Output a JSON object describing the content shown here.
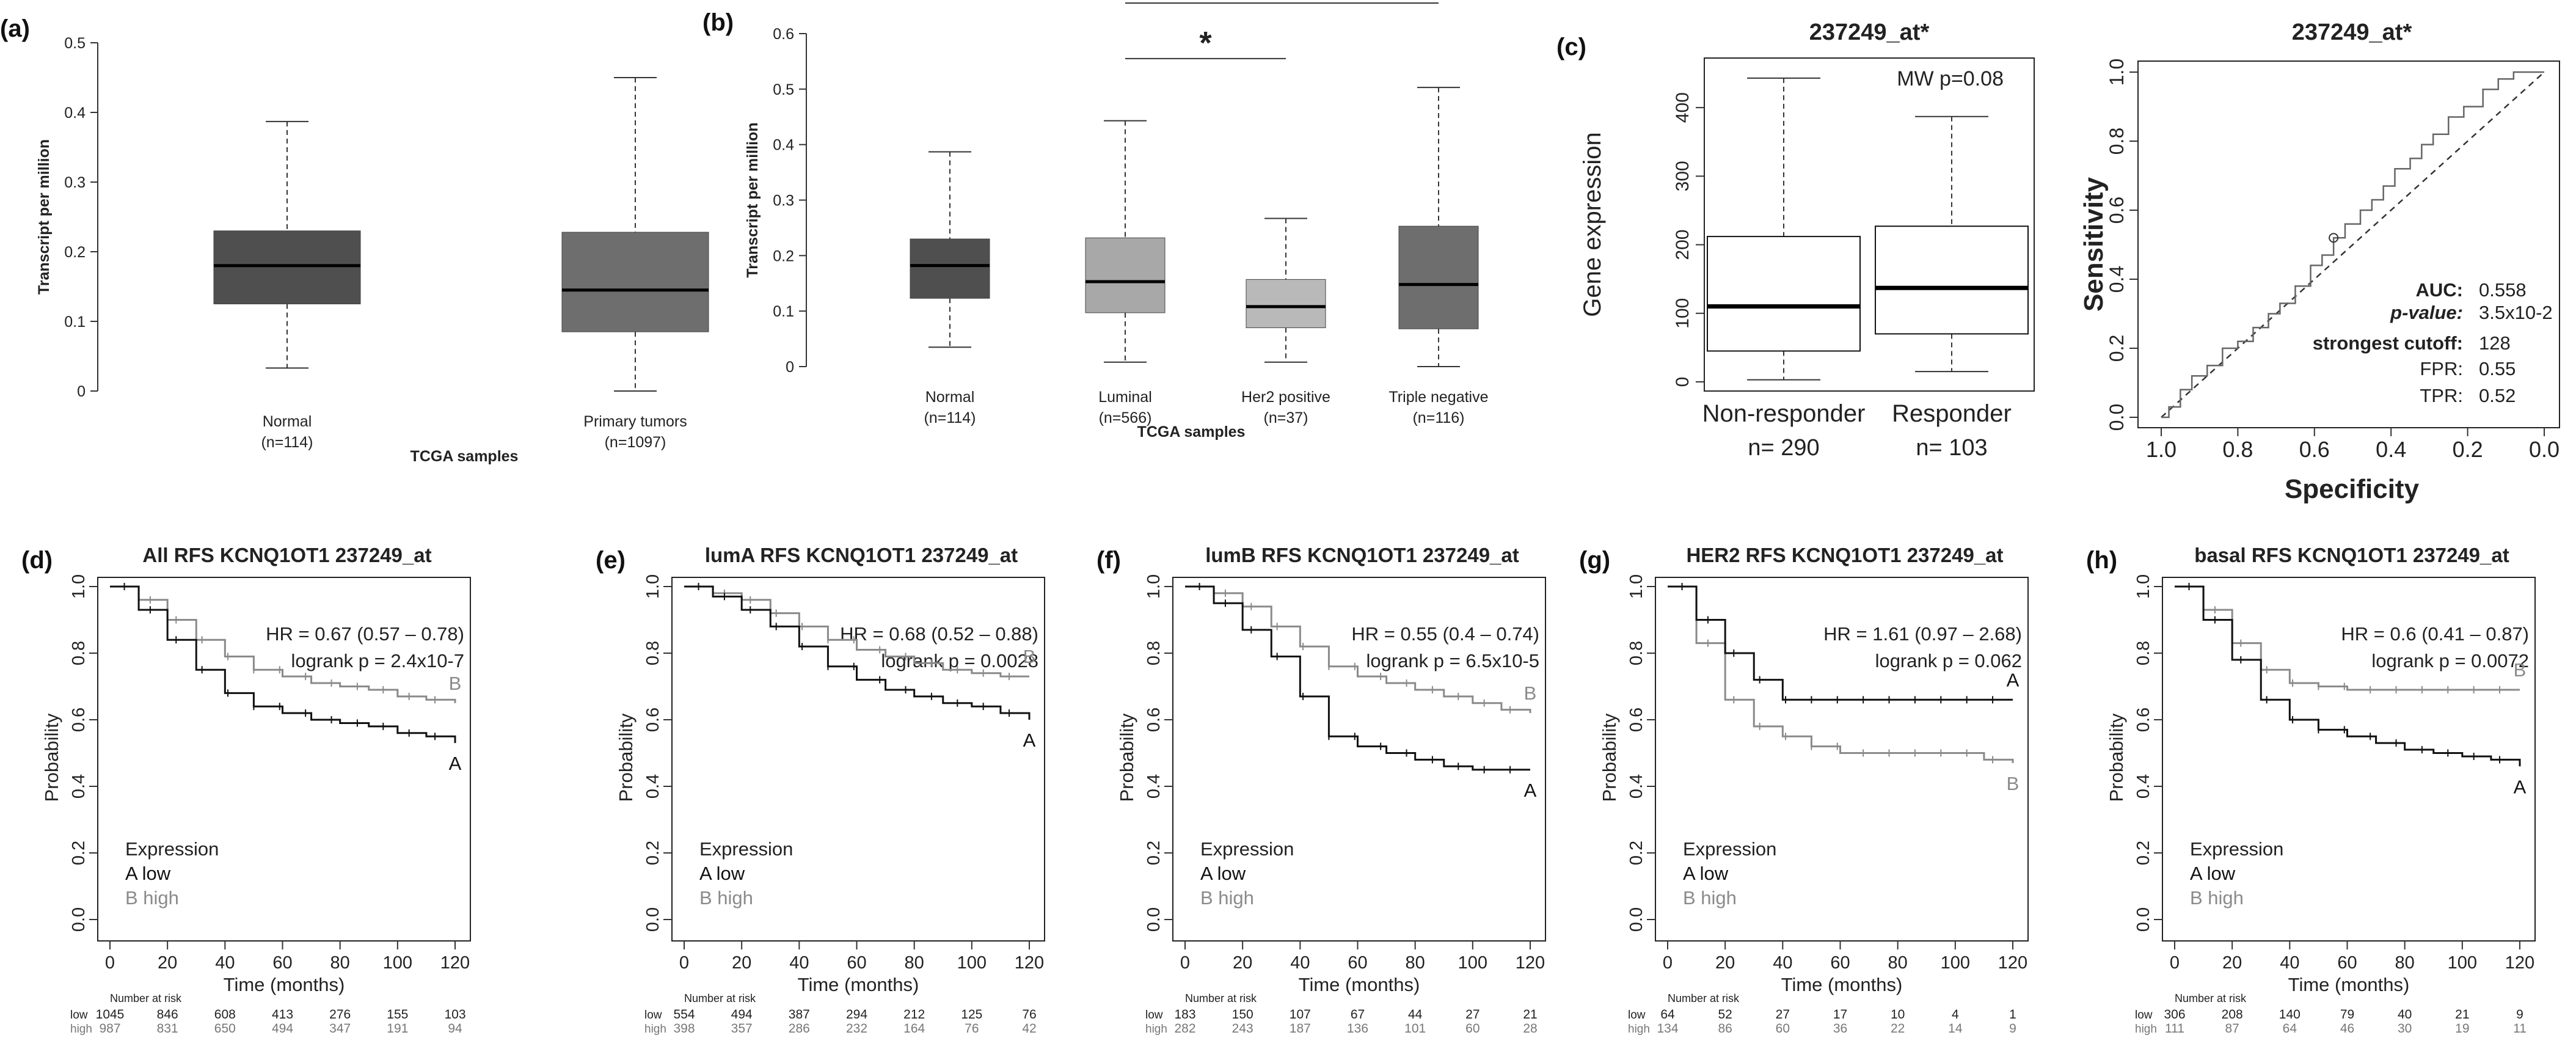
{
  "colors": {
    "dark_box": "#4f4f4f",
    "mid_box": "#6e6e6e",
    "light_box": "#a8a8a8",
    "lighter_box": "#b9b9b9",
    "km_low": "#111111",
    "km_high": "#8a8a8a",
    "axis": "#333333"
  },
  "chart_data": [
    {
      "id": "a",
      "type": "box",
      "panel_label": "(a)",
      "ylabel": "Transcript per million",
      "xlabel": "TCGA samples",
      "ylim": [
        0,
        0.5
      ],
      "yticks": [
        "0",
        "0.1",
        "0.2",
        "0.3",
        "0.4",
        "0.5"
      ],
      "groups": [
        {
          "name": "Normal",
          "n": "(n=114)",
          "min": 0.033,
          "q1": 0.125,
          "median": 0.18,
          "q3": 0.23,
          "max": 0.387,
          "fill": "dark_box"
        },
        {
          "name": "Primary tumors",
          "n": "(n=1097)",
          "min": 0.0,
          "q1": 0.085,
          "median": 0.145,
          "q3": 0.228,
          "max": 0.45,
          "fill": "mid_box"
        }
      ]
    },
    {
      "id": "b",
      "type": "box",
      "panel_label": "(b)",
      "ylabel": "Transcript per million",
      "xlabel": "TCGA samples",
      "ylim": [
        0,
        0.6
      ],
      "yticks": [
        "0",
        "0.1",
        "0.2",
        "0.3",
        "0.4",
        "0.5",
        "0.6"
      ],
      "groups": [
        {
          "name": "Normal",
          "n": "(n=114)",
          "min": 0.035,
          "q1": 0.123,
          "median": 0.182,
          "q3": 0.23,
          "max": 0.387,
          "fill": "dark_box"
        },
        {
          "name": "Luminal",
          "n": "(n=566)",
          "min": 0.008,
          "q1": 0.097,
          "median": 0.153,
          "q3": 0.232,
          "max": 0.443,
          "fill": "light_box"
        },
        {
          "name": "Her2 positive",
          "n": "(n=37)",
          "min": 0.008,
          "q1": 0.07,
          "median": 0.108,
          "q3": 0.157,
          "max": 0.267,
          "fill": "lighter_box"
        },
        {
          "name": "Triple negative",
          "n": "(n=116)",
          "min": 0.0,
          "q1": 0.068,
          "median": 0.148,
          "q3": 0.253,
          "max": 0.503,
          "fill": "mid_box"
        }
      ],
      "significance": [
        {
          "from": 1,
          "to": 2,
          "label": "*",
          "y": 0.555
        },
        {
          "from": 1,
          "to": 3,
          "label": "*",
          "y": 0.655
        }
      ]
    },
    {
      "id": "c1",
      "type": "box",
      "panel_label": "(c)",
      "title": "237249_at*",
      "ylabel": "Gene expression",
      "annotation": "MW p=0.08",
      "ylim": [
        0,
        450
      ],
      "yticks": [
        "0",
        "100",
        "200",
        "300",
        "400"
      ],
      "ytick_values": [
        0,
        100,
        200,
        300,
        400
      ],
      "groups": [
        {
          "name": "Non-responder",
          "n": "n= 290",
          "min": 3,
          "q1": 45,
          "median": 110,
          "q3": 212,
          "max": 443
        },
        {
          "name": "Responder",
          "n": "n= 103",
          "min": 15,
          "q1": 70,
          "median": 137,
          "q3": 227,
          "max": 387
        }
      ]
    },
    {
      "id": "c2",
      "type": "roc",
      "title": "237249_at*",
      "xlabel": "Specificity",
      "ylabel": "Sensitivity",
      "xticks": [
        "1.0",
        "0.8",
        "0.6",
        "0.4",
        "0.2",
        "0.0"
      ],
      "yticks": [
        "0.0",
        "0.2",
        "0.4",
        "0.6",
        "0.8",
        "1.0"
      ],
      "curve": [
        [
          0,
          0
        ],
        [
          0.02,
          0.03
        ],
        [
          0.05,
          0.08
        ],
        [
          0.08,
          0.12
        ],
        [
          0.12,
          0.15
        ],
        [
          0.16,
          0.2
        ],
        [
          0.2,
          0.22
        ],
        [
          0.24,
          0.26
        ],
        [
          0.28,
          0.3
        ],
        [
          0.31,
          0.33
        ],
        [
          0.35,
          0.38
        ],
        [
          0.39,
          0.44
        ],
        [
          0.42,
          0.47
        ],
        [
          0.45,
          0.52
        ],
        [
          0.48,
          0.56
        ],
        [
          0.52,
          0.6
        ],
        [
          0.55,
          0.63
        ],
        [
          0.58,
          0.67
        ],
        [
          0.61,
          0.72
        ],
        [
          0.65,
          0.75
        ],
        [
          0.68,
          0.79
        ],
        [
          0.71,
          0.82
        ],
        [
          0.75,
          0.87
        ],
        [
          0.79,
          0.9
        ],
        [
          0.84,
          0.95
        ],
        [
          0.88,
          0.98
        ],
        [
          0.92,
          1.0
        ],
        [
          1.0,
          1.0
        ]
      ],
      "cutoff_point": [
        0.45,
        0.52
      ],
      "stats": [
        {
          "label": "AUC:",
          "value": "0.558"
        },
        {
          "label": "p-value:",
          "value": "3.5x10-2"
        },
        {
          "label": "strongest cutoff:",
          "value": "128"
        },
        {
          "label": "FPR:",
          "value": "0.55"
        },
        {
          "label": "TPR:",
          "value": "0.52"
        }
      ]
    },
    {
      "id": "d",
      "type": "km",
      "panel_label": "(d)",
      "title": "All RFS KCNQ1OT1 237249_at",
      "hr": "HR = 0.67 (0.57 – 0.78)",
      "logrank": "logrank p = 2.4x10-7",
      "low": {
        "x": [
          0,
          10,
          20,
          30,
          40,
          50,
          60,
          70,
          80,
          90,
          100,
          110,
          120
        ],
        "y": [
          1.0,
          0.93,
          0.84,
          0.75,
          0.68,
          0.64,
          0.62,
          0.6,
          0.59,
          0.58,
          0.56,
          0.55,
          0.53
        ]
      },
      "high": {
        "x": [
          0,
          10,
          20,
          30,
          40,
          50,
          60,
          70,
          80,
          90,
          100,
          110,
          120
        ],
        "y": [
          1.0,
          0.96,
          0.9,
          0.84,
          0.79,
          0.75,
          0.73,
          0.71,
          0.7,
          0.69,
          0.67,
          0.66,
          0.65
        ]
      },
      "risk_low": [
        "1045",
        "846",
        "608",
        "413",
        "276",
        "155",
        "103"
      ],
      "risk_high": [
        "987",
        "831",
        "650",
        "494",
        "347",
        "191",
        "94"
      ]
    },
    {
      "id": "e",
      "type": "km",
      "panel_label": "(e)",
      "title": "lumA RFS KCNQ1OT1 237249_at",
      "hr": "HR = 0.68 (0.52 – 0.88)",
      "logrank": "logrank p = 0.0028",
      "low": {
        "x": [
          0,
          10,
          20,
          30,
          40,
          50,
          60,
          70,
          80,
          90,
          100,
          110,
          120
        ],
        "y": [
          1.0,
          0.97,
          0.93,
          0.88,
          0.82,
          0.76,
          0.72,
          0.69,
          0.67,
          0.65,
          0.64,
          0.62,
          0.6
        ]
      },
      "high": {
        "x": [
          0,
          10,
          20,
          30,
          40,
          50,
          60,
          70,
          80,
          90,
          100,
          110,
          120
        ],
        "y": [
          1.0,
          0.98,
          0.96,
          0.92,
          0.88,
          0.84,
          0.81,
          0.79,
          0.77,
          0.75,
          0.74,
          0.73,
          0.73
        ]
      },
      "risk_low": [
        "554",
        "494",
        "387",
        "294",
        "212",
        "125",
        "76"
      ],
      "risk_high": [
        "398",
        "357",
        "286",
        "232",
        "164",
        "76",
        "42"
      ]
    },
    {
      "id": "f",
      "type": "km",
      "panel_label": "(f)",
      "title": "lumB RFS KCNQ1OT1 237249_at",
      "hr": "HR = 0.55 (0.4 – 0.74)",
      "logrank": "logrank p = 6.5x10-5",
      "low": {
        "x": [
          0,
          10,
          20,
          30,
          40,
          50,
          60,
          70,
          80,
          90,
          100,
          110,
          120
        ],
        "y": [
          1.0,
          0.95,
          0.87,
          0.79,
          0.67,
          0.55,
          0.52,
          0.5,
          0.48,
          0.46,
          0.45,
          0.45,
          0.45
        ]
      },
      "high": {
        "x": [
          0,
          10,
          20,
          30,
          40,
          50,
          60,
          70,
          80,
          90,
          100,
          110,
          120
        ],
        "y": [
          1.0,
          0.98,
          0.94,
          0.88,
          0.82,
          0.76,
          0.73,
          0.71,
          0.69,
          0.67,
          0.65,
          0.63,
          0.62
        ]
      },
      "risk_low": [
        "183",
        "150",
        "107",
        "67",
        "44",
        "27",
        "21"
      ],
      "risk_high": [
        "282",
        "243",
        "187",
        "136",
        "101",
        "60",
        "28"
      ]
    },
    {
      "id": "g",
      "type": "km",
      "panel_label": "(g)",
      "title": "HER2 RFS KCNQ1OT1 237249_at",
      "hr": "HR = 1.61 (0.97 – 2.68)",
      "logrank": "logrank p = 0.062",
      "low": {
        "x": [
          0,
          10,
          20,
          30,
          40,
          50,
          60,
          70,
          80,
          90,
          100,
          110,
          120
        ],
        "y": [
          1.0,
          0.9,
          0.8,
          0.72,
          0.66,
          0.66,
          0.66,
          0.66,
          0.66,
          0.66,
          0.66,
          0.66,
          0.66
        ]
      },
      "high": {
        "x": [
          0,
          10,
          20,
          30,
          40,
          50,
          60,
          70,
          80,
          90,
          100,
          110,
          120
        ],
        "y": [
          1.0,
          0.83,
          0.66,
          0.58,
          0.55,
          0.52,
          0.5,
          0.5,
          0.5,
          0.5,
          0.5,
          0.48,
          0.47
        ]
      },
      "risk_low": [
        "64",
        "52",
        "27",
        "17",
        "10",
        "4",
        "1"
      ],
      "risk_high": [
        "134",
        "86",
        "60",
        "36",
        "22",
        "14",
        "9"
      ]
    },
    {
      "id": "h",
      "type": "km",
      "panel_label": "(h)",
      "title": "basal RFS KCNQ1OT1 237249_at",
      "hr": "HR = 0.6 (0.41 – 0.87)",
      "logrank": "logrank p = 0.0072",
      "low": {
        "x": [
          0,
          10,
          20,
          30,
          40,
          50,
          60,
          70,
          80,
          90,
          100,
          110,
          120
        ],
        "y": [
          1.0,
          0.9,
          0.78,
          0.66,
          0.6,
          0.57,
          0.55,
          0.53,
          0.51,
          0.5,
          0.49,
          0.48,
          0.46
        ]
      },
      "high": {
        "x": [
          0,
          10,
          20,
          30,
          40,
          50,
          60,
          70,
          80,
          90,
          100,
          110,
          120
        ],
        "y": [
          1.0,
          0.93,
          0.83,
          0.75,
          0.71,
          0.7,
          0.69,
          0.69,
          0.69,
          0.69,
          0.69,
          0.69,
          0.69
        ]
      },
      "risk_low": [
        "306",
        "208",
        "140",
        "79",
        "40",
        "21",
        "9"
      ],
      "risk_high": [
        "111",
        "87",
        "64",
        "46",
        "30",
        "19",
        "11"
      ]
    }
  ],
  "km_common": {
    "xlabel": "Time (months)",
    "ylabel": "Probability",
    "xticks": [
      "0",
      "20",
      "40",
      "60",
      "80",
      "100",
      "120"
    ],
    "yticks": [
      "0.0",
      "0.2",
      "0.4",
      "0.6",
      "0.8",
      "1.0"
    ],
    "legend_title": "Expression",
    "legend_low": "A low",
    "legend_high": "B high",
    "label_low": "A",
    "label_high": "B",
    "risk_header": "Number at risk",
    "risk_low_label": "low",
    "risk_high_label": "high"
  }
}
